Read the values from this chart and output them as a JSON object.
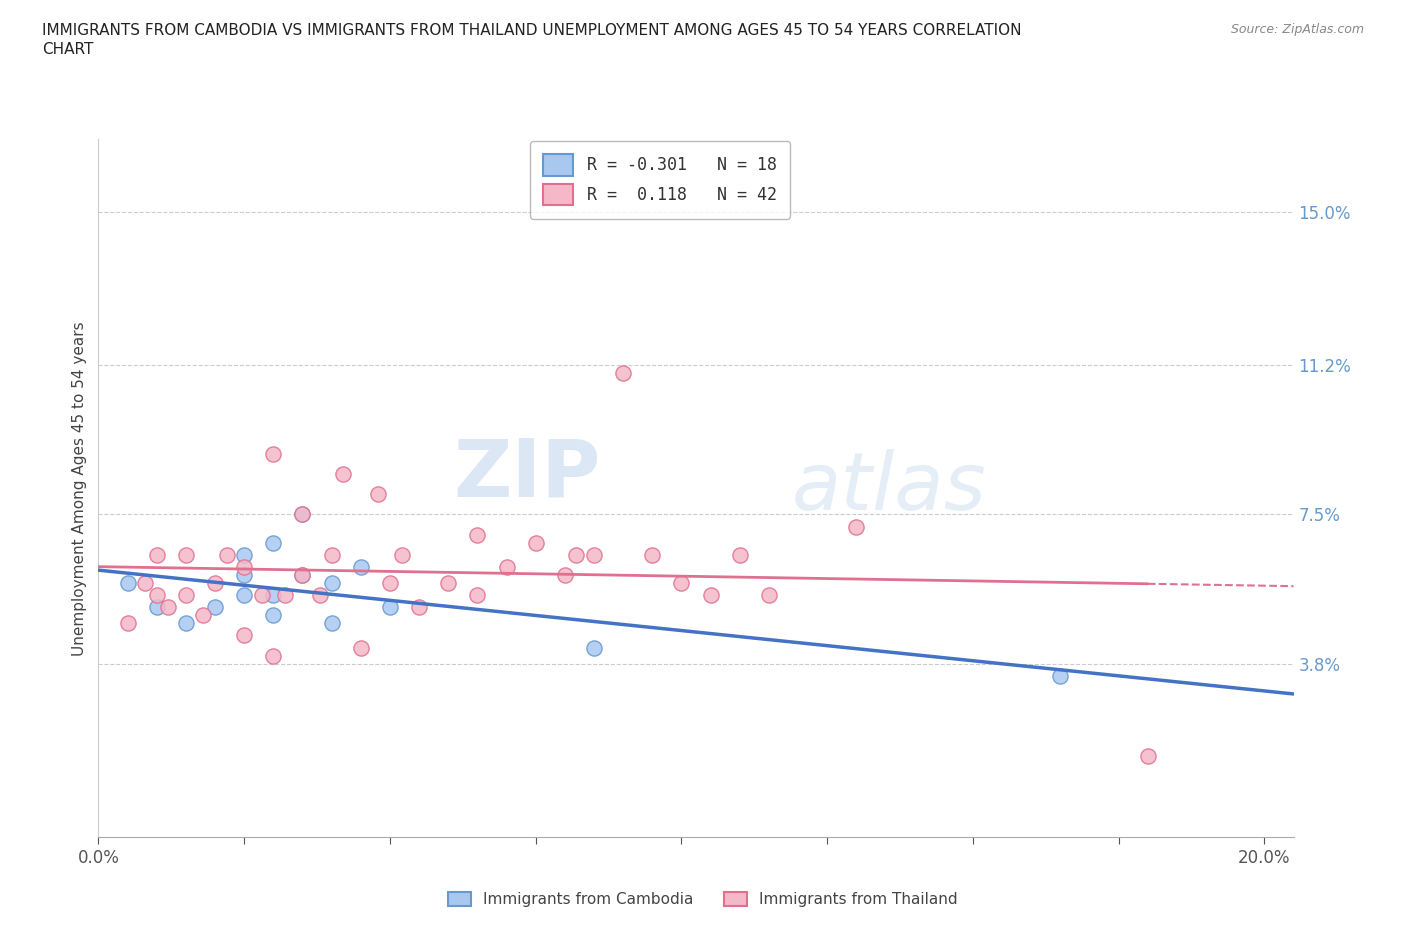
{
  "title_line1": "IMMIGRANTS FROM CAMBODIA VS IMMIGRANTS FROM THAILAND UNEMPLOYMENT AMONG AGES 45 TO 54 YEARS CORRELATION",
  "title_line2": "CHART",
  "source": "Source: ZipAtlas.com",
  "ylabel": "Unemployment Among Ages 45 to 54 years",
  "xlim": [
    0.0,
    0.205
  ],
  "ylim": [
    -0.005,
    0.168
  ],
  "right_yticks": [
    0.038,
    0.075,
    0.112,
    0.15
  ],
  "right_yticklabels": [
    "3.8%",
    "7.5%",
    "11.2%",
    "15.0%"
  ],
  "watermark_zip": "ZIP",
  "watermark_atlas": "atlas",
  "legend_r1": "R = -0.301",
  "legend_n1": "N = 18",
  "legend_r2": "R =  0.118",
  "legend_n2": "N = 42",
  "color_cambodia_face": "#a8c8f0",
  "color_cambodia_edge": "#6699cc",
  "color_thailand_face": "#f4b8c8",
  "color_thailand_edge": "#e07090",
  "line_color_cambodia": "#4472c4",
  "line_color_thailand": "#e07090",
  "grid_color": "#cccccc",
  "cambodia_x": [
    0.005,
    0.01,
    0.015,
    0.02,
    0.025,
    0.025,
    0.025,
    0.03,
    0.03,
    0.03,
    0.035,
    0.035,
    0.04,
    0.04,
    0.045,
    0.05,
    0.085,
    0.165
  ],
  "cambodia_y": [
    0.058,
    0.052,
    0.048,
    0.052,
    0.055,
    0.06,
    0.065,
    0.05,
    0.055,
    0.068,
    0.06,
    0.075,
    0.048,
    0.058,
    0.062,
    0.052,
    0.042,
    0.035
  ],
  "thailand_x": [
    0.005,
    0.008,
    0.01,
    0.01,
    0.012,
    0.015,
    0.015,
    0.018,
    0.02,
    0.022,
    0.025,
    0.025,
    0.028,
    0.03,
    0.03,
    0.032,
    0.035,
    0.035,
    0.038,
    0.04,
    0.042,
    0.045,
    0.048,
    0.05,
    0.052,
    0.055,
    0.06,
    0.065,
    0.065,
    0.07,
    0.075,
    0.08,
    0.082,
    0.085,
    0.09,
    0.095,
    0.1,
    0.105,
    0.11,
    0.115,
    0.13,
    0.18
  ],
  "thailand_y": [
    0.048,
    0.058,
    0.055,
    0.065,
    0.052,
    0.055,
    0.065,
    0.05,
    0.058,
    0.065,
    0.045,
    0.062,
    0.055,
    0.04,
    0.09,
    0.055,
    0.06,
    0.075,
    0.055,
    0.065,
    0.085,
    0.042,
    0.08,
    0.058,
    0.065,
    0.052,
    0.058,
    0.055,
    0.07,
    0.062,
    0.068,
    0.06,
    0.065,
    0.065,
    0.11,
    0.065,
    0.058,
    0.055,
    0.065,
    0.055,
    0.072,
    0.015
  ],
  "dashed_yticks": [
    0.038,
    0.075,
    0.112,
    0.15
  ],
  "marker_size": 120
}
